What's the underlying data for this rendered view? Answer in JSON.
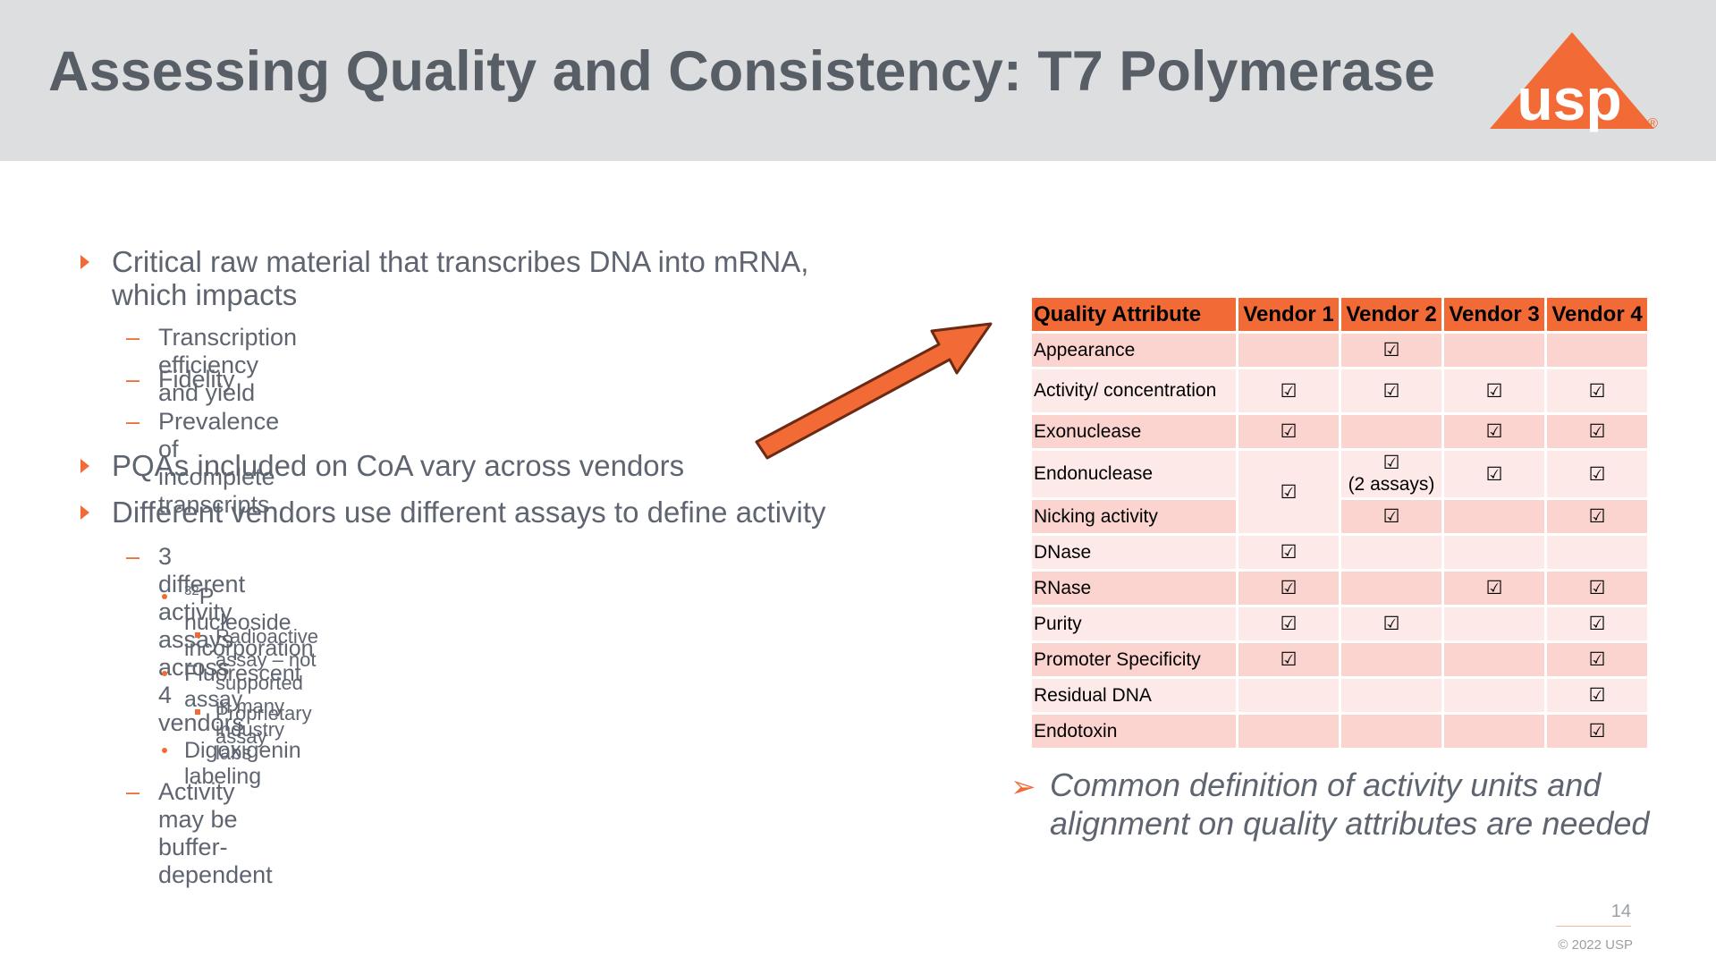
{
  "slide": {
    "title": "Assessing Quality and Consistency: T7 Polymerase",
    "logo_text": "usp",
    "logo_mark": "®",
    "page_number": "14",
    "copyright": "© 2022 USP"
  },
  "bullets": {
    "b1": "Critical raw material that transcribes DNA into mRNA, which impacts",
    "b1_s1": "Transcription efficiency and yield",
    "b1_s2": "Fidelity",
    "b1_s3": "Prevalence of incomplete transcripts",
    "b2": "PQAs included on CoA vary across vendors",
    "b3": "Different vendors use different assays to define activity",
    "b3_s1": "3 different activity assays across 4 vendors",
    "b3_s1_a_sup": "32",
    "b3_s1_a": "P nucleoside incorporation",
    "b3_s1_a_i": "Radioactive assay – not supported in many industry labs",
    "b3_s1_b": "Fluorescent assay",
    "b3_s1_b_i": "Proprietary assay",
    "b3_s1_c": "Digoxigenin labeling",
    "b3_s2": "Activity may be buffer-dependent"
  },
  "table": {
    "headers": [
      "Quality Attribute",
      "Vendor 1",
      "Vendor 2",
      "Vendor 3",
      "Vendor 4"
    ],
    "check": "☑",
    "rows": [
      {
        "attr": "Appearance",
        "v": [
          "",
          "☑",
          "",
          ""
        ]
      },
      {
        "attr": "Activity/ concentration",
        "v": [
          "☑",
          "☑",
          "☑",
          "☑"
        ]
      },
      {
        "attr": "Exonuclease",
        "v": [
          "☑",
          "",
          "☑",
          "☑"
        ]
      },
      {
        "attr": "Endonuclease",
        "v": [
          "☑",
          "☑",
          "☑",
          "☑"
        ],
        "v2_note": "(2 assays)"
      },
      {
        "attr": "Nicking activity",
        "v": [
          "",
          "☑",
          "",
          "☑"
        ]
      },
      {
        "attr": "DNase",
        "v": [
          "☑",
          "",
          "",
          ""
        ]
      },
      {
        "attr": "RNase",
        "v": [
          "☑",
          "",
          "☑",
          "☑"
        ]
      },
      {
        "attr": "Purity",
        "v": [
          "☑",
          "☑",
          "",
          "☑"
        ]
      },
      {
        "attr": "Promoter Specificity",
        "v": [
          "☑",
          "",
          "",
          "☑"
        ]
      },
      {
        "attr": "Residual DNA",
        "v": [
          "",
          "",
          "",
          "☑"
        ]
      },
      {
        "attr": "Endotoxin",
        "v": [
          "",
          "",
          "",
          "☑"
        ]
      }
    ]
  },
  "callout": {
    "marker": "➢",
    "text": "Common definition of activity units and alignment on quality attributes are needed"
  },
  "colors": {
    "accent": "#f26b36",
    "header_bg": "#dddee0",
    "title": "#575e66",
    "row_dark": "#fbd3cf",
    "row_light": "#fde9e7"
  }
}
